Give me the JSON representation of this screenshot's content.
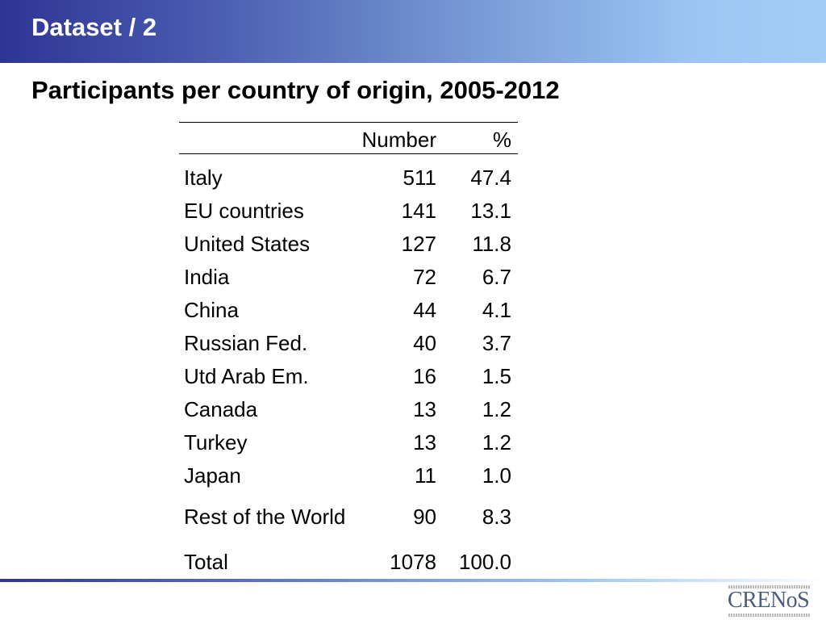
{
  "header": {
    "title": "Dataset / 2"
  },
  "subtitle": "Participants per country of origin, 2005-2012",
  "table": {
    "columns": {
      "number": "Number",
      "percent": "%"
    },
    "rows": [
      {
        "country": "Italy",
        "number": "511",
        "percent": "47.4"
      },
      {
        "country": "EU countries",
        "number": "141",
        "percent": "13.1"
      },
      {
        "country": "United States",
        "number": "127",
        "percent": "11.8"
      },
      {
        "country": "India",
        "number": "72",
        "percent": "6.7"
      },
      {
        "country": "China",
        "number": "44",
        "percent": "4.1"
      },
      {
        "country": "Russian Fed.",
        "number": "40",
        "percent": "3.7"
      },
      {
        "country": "Utd Arab Em.",
        "number": "16",
        "percent": "1.5"
      },
      {
        "country": "Canada",
        "number": "13",
        "percent": "1.2"
      },
      {
        "country": "Turkey",
        "number": "13",
        "percent": "1.2"
      },
      {
        "country": "Japan",
        "number": "11",
        "percent": "1.0"
      }
    ],
    "rest": {
      "country": "Rest of the World",
      "number": "90",
      "percent": "8.3"
    },
    "total": {
      "country": "Total",
      "number": "1078",
      "percent": "100.0"
    }
  },
  "logo": {
    "text": "CRENoS"
  },
  "colors": {
    "header_start": "#2e3593",
    "header_end": "#a3ccf6",
    "logo": "#4a5e7a"
  }
}
